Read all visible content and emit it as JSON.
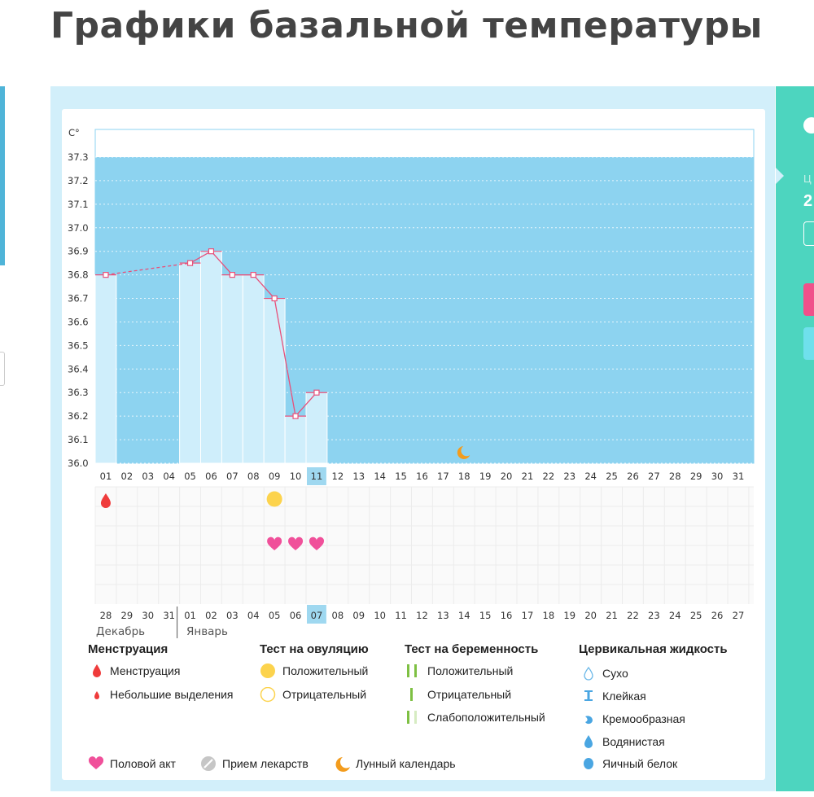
{
  "page": {
    "title": "Графики базальной температуры"
  },
  "right_panel": {
    "label": "Ц",
    "value": "2"
  },
  "chart_data": {
    "type": "line",
    "unit_label": "C°",
    "ylim": [
      36.0,
      37.3
    ],
    "y_ticks": [
      "36.0",
      "36.1",
      "36.2",
      "36.3",
      "36.4",
      "36.5",
      "36.6",
      "36.7",
      "36.8",
      "36.9",
      "37.0",
      "37.1",
      "37.2",
      "37.3"
    ],
    "x_ticks": [
      "01",
      "02",
      "03",
      "04",
      "05",
      "06",
      "07",
      "08",
      "09",
      "10",
      "11",
      "12",
      "13",
      "14",
      "15",
      "16",
      "17",
      "18",
      "19",
      "20",
      "21",
      "22",
      "23",
      "24",
      "25",
      "26",
      "27",
      "28",
      "29",
      "30",
      "31"
    ],
    "highlight_day": "11",
    "series": [
      {
        "values": [
          36.8,
          null,
          null,
          null,
          36.85,
          36.9,
          36.8,
          36.8,
          36.7,
          36.2,
          36.3
        ]
      }
    ],
    "dashed_gap": {
      "from_day": "01",
      "to_day": "05"
    },
    "lunar_marker_day": "18",
    "markers": {
      "menstruation_days": [
        "01"
      ],
      "ovulation_positive_days": [
        "09"
      ],
      "intercourse_days": [
        "09",
        "10",
        "11"
      ]
    },
    "calendar_dates": [
      {
        "d": "28",
        "red": true
      },
      {
        "d": "29",
        "red": true
      },
      {
        "d": "30",
        "red": false
      },
      {
        "d": "31",
        "red": false
      },
      {
        "d": "01",
        "red": false
      },
      {
        "d": "02",
        "red": false
      },
      {
        "d": "03",
        "red": false
      },
      {
        "d": "04",
        "red": true
      },
      {
        "d": "05",
        "red": true
      },
      {
        "d": "06",
        "red": false
      },
      {
        "d": "07",
        "red": false,
        "hl": true
      },
      {
        "d": "08",
        "red": false
      },
      {
        "d": "09",
        "red": false
      },
      {
        "d": "10",
        "red": false
      },
      {
        "d": "11",
        "red": true
      },
      {
        "d": "12",
        "red": true
      },
      {
        "d": "13",
        "red": false
      },
      {
        "d": "14",
        "red": false
      },
      {
        "d": "15",
        "red": false
      },
      {
        "d": "16",
        "red": false
      },
      {
        "d": "17",
        "red": false
      },
      {
        "d": "18",
        "red": true
      },
      {
        "d": "19",
        "red": true
      },
      {
        "d": "20",
        "red": false
      },
      {
        "d": "21",
        "red": false
      },
      {
        "d": "22",
        "red": false
      },
      {
        "d": "23",
        "red": false
      },
      {
        "d": "24",
        "red": false
      },
      {
        "d": "25",
        "red": true
      },
      {
        "d": "26",
        "red": true
      },
      {
        "d": "27",
        "red": false
      }
    ],
    "months": {
      "first": "Декабрь",
      "second": "Январь"
    }
  },
  "legend": {
    "menstruation": {
      "title": "Менструация",
      "items": [
        "Менструация",
        "Небольшие выделения"
      ]
    },
    "ovulation": {
      "title": "Тест на овуляцию",
      "items": [
        "Положительный",
        "Отрицательный"
      ]
    },
    "pregnancy": {
      "title": "Тест на беременность",
      "items": [
        "Положительный",
        "Отрицательный",
        "Слабоположительный"
      ]
    },
    "cervical": {
      "title": "Цервикальная жидкость",
      "items": [
        "Сухо",
        "Клейкая",
        "Кремообразная",
        "Водянистая",
        "Яичный белок"
      ]
    },
    "bottom": {
      "intercourse": "Половой акт",
      "medication": "Прием лекарств",
      "lunar": "Лунный календарь"
    }
  },
  "colors": {
    "chart_blue": "#8dd3f0",
    "bar_fill": "#cfeefb",
    "line": "#e8507a",
    "red_date": "#e8255a",
    "drop": "#ef3b3b",
    "ovulation": "#fcd34d",
    "heart": "#f0509a",
    "moon": "#f39c1d",
    "highlight": "#9fd8f0",
    "test_green": "#7ec043"
  }
}
